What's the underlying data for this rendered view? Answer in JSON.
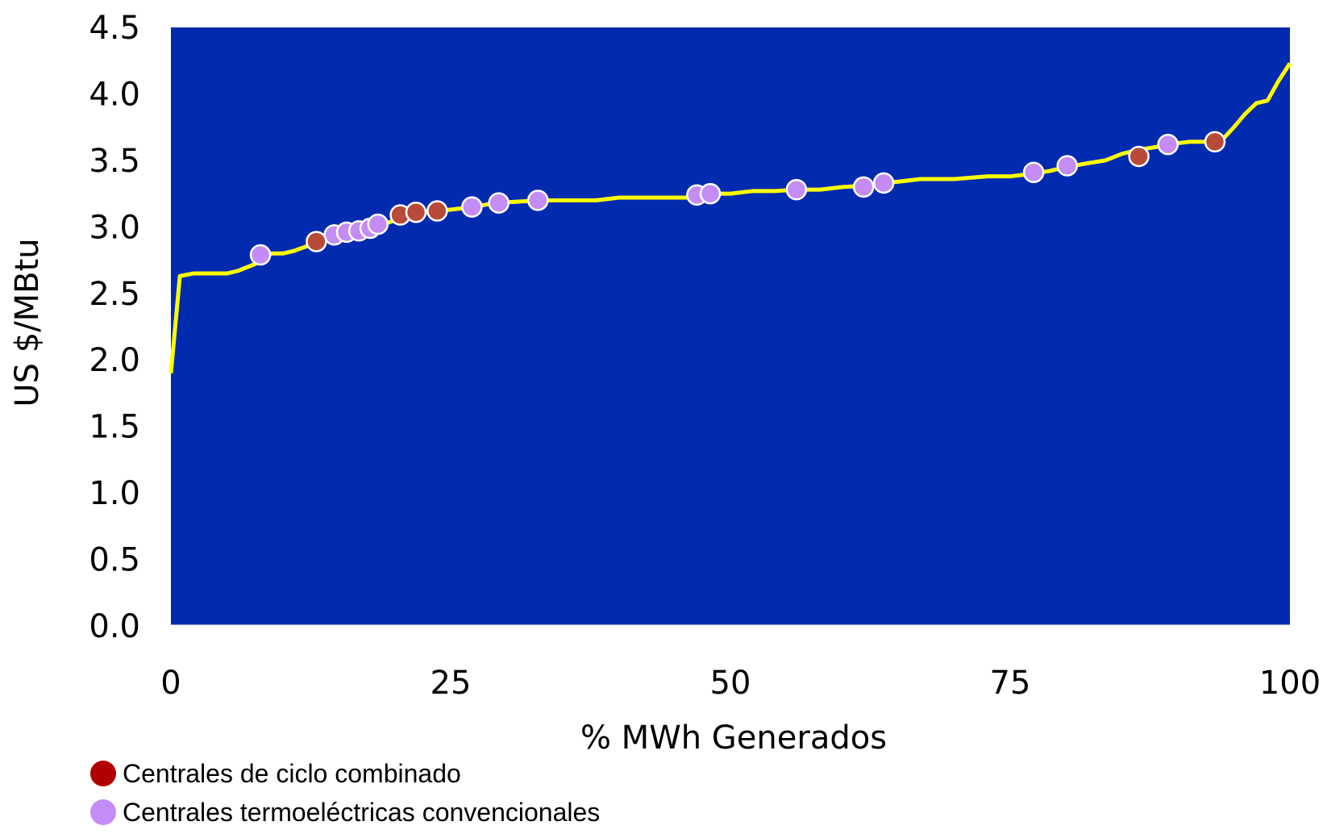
{
  "colors": {
    "plot_background": "#002BAF",
    "curve": "#FFFF00",
    "combined_cycle": "#B84A3A",
    "conventional": "#C48CF5",
    "marker_outline": "#FFFFFF",
    "axis_line": "#FFFFFF"
  },
  "legend": {
    "items": [
      {
        "label": "Centrales de ciclo combinado",
        "color": "#B00000"
      },
      {
        "label": "Centrales termoeléctricas convencionales",
        "color": "#C48CF5"
      }
    ]
  },
  "chart_data": {
    "type": "line",
    "title": "",
    "xlabel": "% MWh Generados",
    "ylabel": "US $/MBtu",
    "xlim": [
      0,
      100
    ],
    "ylim": [
      0,
      4.5
    ],
    "x_ticks": [
      0,
      25,
      50,
      75,
      100
    ],
    "y_ticks": [
      0.0,
      0.5,
      1.0,
      1.5,
      2.0,
      2.5,
      3.0,
      3.5,
      4.0,
      4.5
    ],
    "x_tick_labels": [
      "0",
      "25",
      "50",
      "75",
      "100"
    ],
    "y_tick_labels": [
      "0.0",
      "0.5",
      "1.0",
      "1.5",
      "2.0",
      "2.5",
      "3.0",
      "3.5",
      "4.0",
      "4.5"
    ],
    "grid": false,
    "legend_position": "bottom-left",
    "curve": {
      "x": [
        0,
        0.8,
        2,
        4,
        5,
        6,
        7.5,
        8.5,
        9,
        10,
        11,
        12,
        13,
        14,
        15,
        16,
        17,
        18,
        19,
        20,
        21,
        22,
        23,
        24,
        25,
        27,
        29,
        31,
        33,
        35,
        38,
        40,
        43,
        46,
        47,
        48,
        50,
        52,
        54,
        56,
        58,
        60,
        62,
        63.5,
        65,
        67,
        70,
        73,
        75,
        77,
        78.5,
        80,
        82,
        83.5,
        85,
        86.5,
        88,
        89,
        91,
        93,
        94,
        95,
        96,
        97,
        98,
        99,
        100
      ],
      "y": [
        1.9,
        2.63,
        2.65,
        2.65,
        2.65,
        2.67,
        2.72,
        2.78,
        2.8,
        2.8,
        2.82,
        2.85,
        2.88,
        2.9,
        2.93,
        2.95,
        2.97,
        2.99,
        3.02,
        3.05,
        3.08,
        3.1,
        3.11,
        3.12,
        3.13,
        3.15,
        3.18,
        3.19,
        3.2,
        3.2,
        3.2,
        3.22,
        3.22,
        3.22,
        3.24,
        3.25,
        3.25,
        3.27,
        3.27,
        3.28,
        3.28,
        3.3,
        3.31,
        3.33,
        3.34,
        3.36,
        3.36,
        3.38,
        3.38,
        3.4,
        3.42,
        3.45,
        3.48,
        3.5,
        3.55,
        3.58,
        3.6,
        3.62,
        3.64,
        3.64,
        3.66,
        3.75,
        3.85,
        3.93,
        3.95,
        4.1,
        4.23
      ]
    },
    "series": [
      {
        "name": "Centrales de ciclo combinado",
        "x": [
          13,
          20.5,
          21.9,
          23.8,
          86.5,
          93.3
        ],
        "y": [
          2.89,
          3.09,
          3.11,
          3.12,
          3.53,
          3.64
        ]
      },
      {
        "name": "Centrales termoeléctricas convencionales",
        "x": [
          8,
          14.6,
          15.7,
          16.8,
          17.8,
          18.5,
          26.9,
          29.3,
          32.8,
          47,
          48.2,
          55.9,
          61.9,
          63.7,
          77.1,
          80.1,
          89.1
        ],
        "y": [
          2.79,
          2.94,
          2.96,
          2.97,
          2.99,
          3.02,
          3.15,
          3.18,
          3.2,
          3.24,
          3.25,
          3.28,
          3.3,
          3.33,
          3.41,
          3.46,
          3.62
        ]
      }
    ]
  }
}
